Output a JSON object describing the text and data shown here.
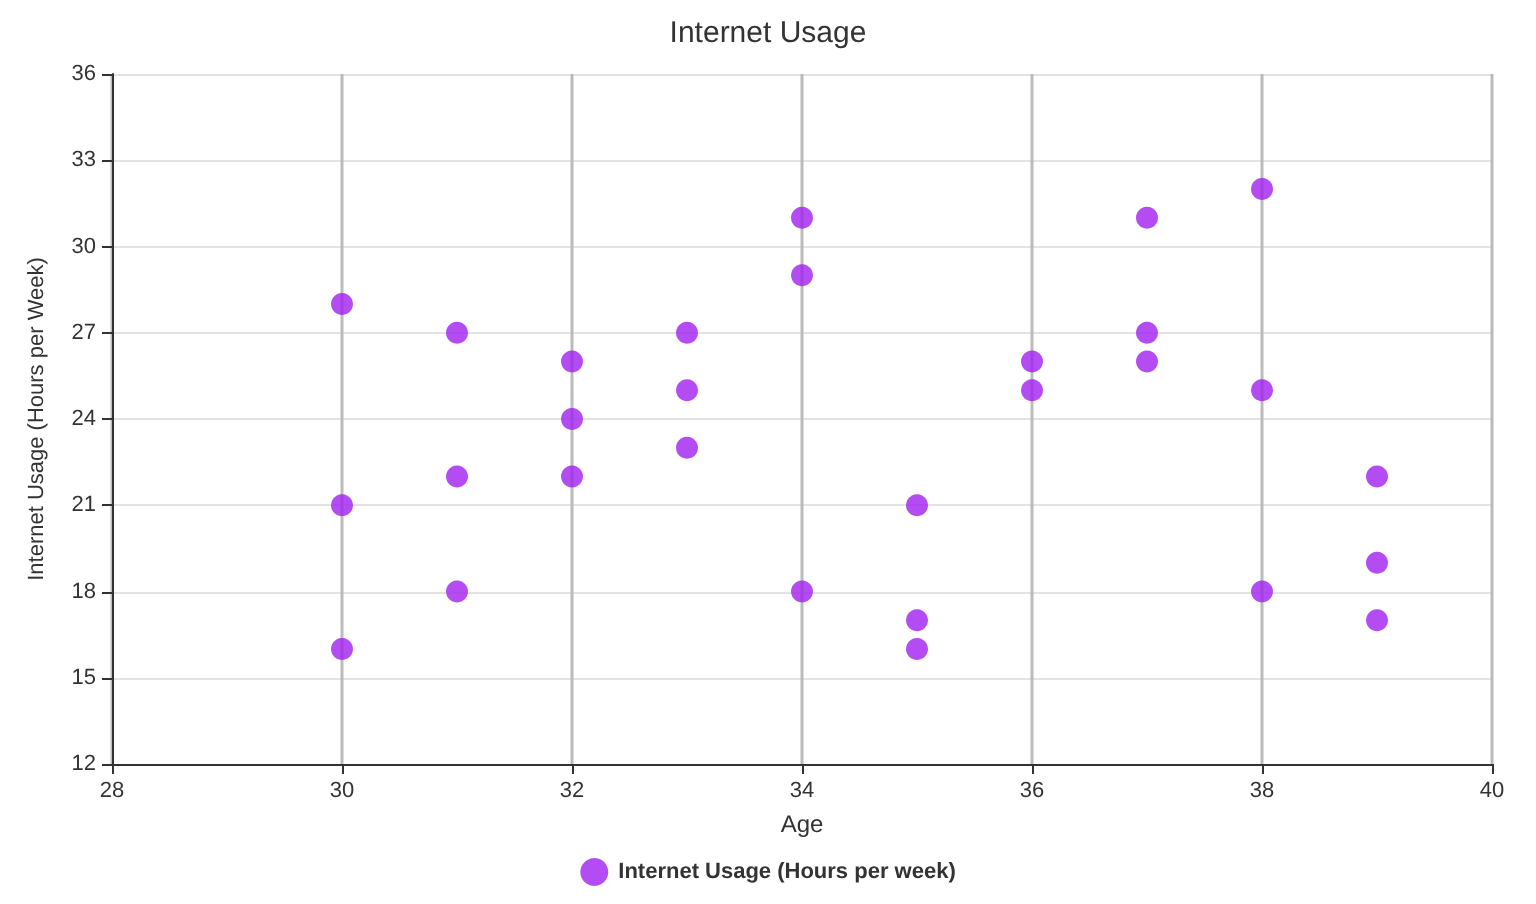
{
  "chart_data": {
    "type": "scatter",
    "title": "Internet Usage",
    "xlabel": "Age",
    "ylabel": "Internet Usage (Hours per Week)",
    "series": [
      {
        "name": "Internet Usage (Hours per week)",
        "color": "#a020f0",
        "x": [
          30,
          30,
          30,
          31,
          31,
          31,
          32,
          32,
          32,
          33,
          33,
          33,
          34,
          34,
          34,
          35,
          35,
          35,
          36,
          36,
          37,
          37,
          37,
          38,
          38,
          38,
          39,
          39,
          39
        ],
        "values": [
          28,
          21,
          16,
          27,
          22,
          18,
          26,
          24,
          22,
          27,
          25,
          23,
          31,
          29,
          18,
          21,
          17,
          16,
          26,
          25,
          31,
          27,
          26,
          32,
          25,
          18,
          22,
          19,
          17
        ]
      }
    ],
    "xlim": [
      28,
      40
    ],
    "xticks": [
      28,
      30,
      32,
      34,
      36,
      38,
      40
    ],
    "ylim": [
      12,
      36
    ],
    "yticks": [
      12,
      15,
      18,
      21,
      24,
      27,
      30,
      33,
      36
    ],
    "grid": true,
    "legend": "bottom",
    "marker": "circle"
  }
}
